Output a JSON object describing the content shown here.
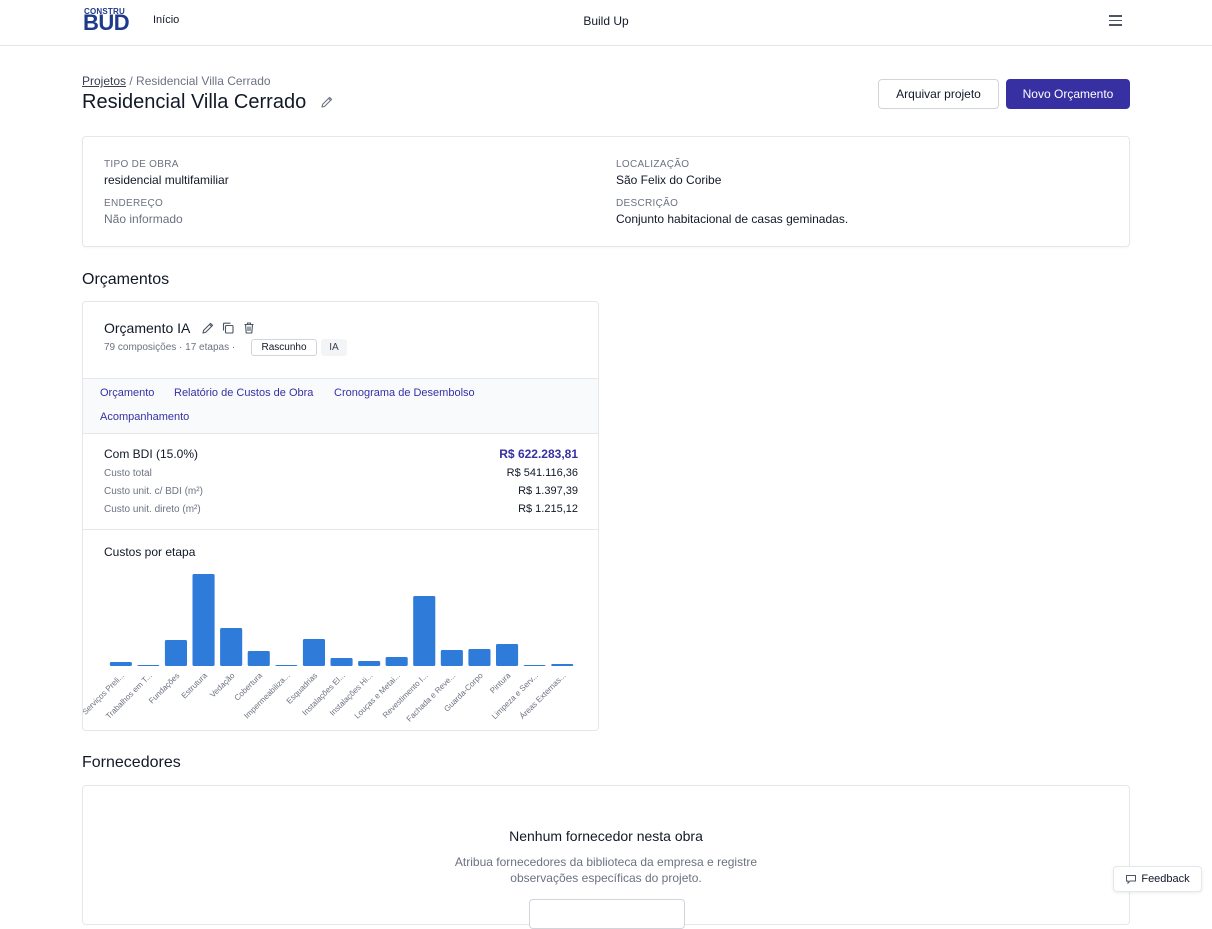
{
  "header": {
    "logo_top": "CONSTRU",
    "logo_bottom": "BUD",
    "nav_home": "Início",
    "app_name": "Build Up"
  },
  "breadcrumb": {
    "parent": "Projetos",
    "separator": " / ",
    "current": "Residencial Villa Cerrado"
  },
  "page": {
    "title": "Residencial Villa Cerrado",
    "archive_label": "Arquivar projeto",
    "new_budget_label": "Novo Orçamento"
  },
  "project_info": {
    "type_label": "TIPO DE OBRA",
    "type_value": "residencial multifamiliar",
    "location_label": "LOCALIZAÇÃO",
    "location_value": "São Felix do Coribe",
    "address_label": "ENDEREÇO",
    "address_value": "Não informado",
    "description_label": "DESCRIÇÃO",
    "description_value": "Conjunto habitacional de casas geminadas."
  },
  "budgets_section": {
    "title": "Orçamentos"
  },
  "budget": {
    "name": "Orçamento IA",
    "meta": "79 composições · 17 etapas ·",
    "status_badge": "Rascunho",
    "type_badge": "IA",
    "tabs": [
      "Orçamento",
      "Relatório de Custos de Obra",
      "Cronograma de Desembolso",
      "Acompanhamento"
    ],
    "bdi_label": "Com BDI (15.0%)",
    "bdi_value": "R$ 622.283,81",
    "rows": [
      {
        "label": "Custo total",
        "value": "R$ 541.116,36"
      },
      {
        "label": "Custo unit. c/ BDI (m²)",
        "value": "R$ 1.397,39"
      },
      {
        "label": "Custo unit. direto (m²)",
        "value": "R$ 1.215,12"
      }
    ],
    "chart_title": "Custos por etapa"
  },
  "chart_data": {
    "type": "bar",
    "title": "Custos por etapa",
    "categories": [
      "Serviços Preli...",
      "Trabalhos em T...",
      "Fundações",
      "Estrutura",
      "Vedação",
      "Cobertura",
      "Impermeabiliza...",
      "Esquadrias",
      "Instalações El...",
      "Instalações Hi...",
      "Louças e Metai...",
      "Revestimento I...",
      "Fachada e Reve...",
      "Guarda-Corpo",
      "Pintura",
      "Limpeza e Serv...",
      "Áreas Externas..."
    ],
    "values": [
      4,
      1,
      26,
      92,
      38,
      15,
      0.5,
      27,
      8,
      5,
      9,
      70,
      16,
      17,
      22,
      0.3,
      2
    ],
    "color": "#2e7bd9",
    "ylabel": "",
    "xlabel": "",
    "grid": false
  },
  "suppliers_section": {
    "title": "Fornecedores",
    "empty_title": "Nenhum fornecedor nesta obra",
    "empty_description": "Atribua fornecedores da biblioteca da empresa e registre observações específicas do projeto."
  },
  "feedback": {
    "label": "Feedback"
  },
  "colors": {
    "primary": "#3730a3",
    "bar": "#2e7bd9",
    "border": "#e5e7eb"
  }
}
